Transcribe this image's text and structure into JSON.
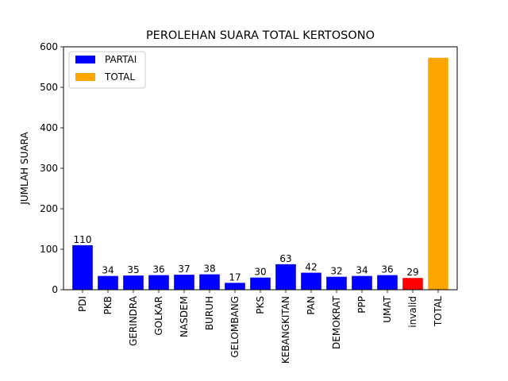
{
  "chart_data": {
    "type": "bar",
    "title": "PEROLEHAN SUARA TOTAL KERTOSONO",
    "xlabel": "",
    "ylabel": "JUMLAH SUARA",
    "ylim": [
      0,
      600
    ],
    "yticks": [
      0,
      100,
      200,
      300,
      400,
      500,
      600
    ],
    "categories": [
      "PDI",
      "PKB",
      "GERINDRA",
      "GOLKAR",
      "NASDEM",
      "BURUH",
      "GELOMBANG",
      "PKS",
      "KEBANGKITAN",
      "PAN",
      "DEMOKRAT",
      "PPP",
      "UMAT",
      "invalid",
      "TOTAL"
    ],
    "values": [
      110,
      34,
      35,
      36,
      37,
      38,
      17,
      30,
      63,
      42,
      32,
      34,
      36,
      29,
      573
    ],
    "data_labels": [
      "110",
      "34",
      "35",
      "36",
      "37",
      "38",
      "17",
      "30",
      "63",
      "42",
      "32",
      "34",
      "36",
      "29",
      ""
    ],
    "bar_colors": [
      "#0000ff",
      "#0000ff",
      "#0000ff",
      "#0000ff",
      "#0000ff",
      "#0000ff",
      "#0000ff",
      "#0000ff",
      "#0000ff",
      "#0000ff",
      "#0000ff",
      "#0000ff",
      "#0000ff",
      "#ff0000",
      "#ffa500"
    ],
    "legend": {
      "placement": "top-left",
      "entries": [
        {
          "label": "PARTAI",
          "color": "#0000ff"
        },
        {
          "label": "TOTAL",
          "color": "#ffa500"
        }
      ]
    },
    "grid": false
  }
}
